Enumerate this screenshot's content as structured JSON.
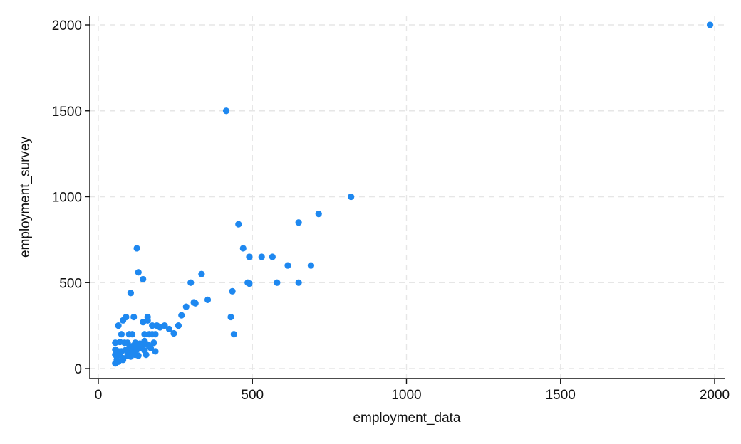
{
  "chart_data": {
    "type": "scatter",
    "xlabel": "employment_data",
    "ylabel": "employment_survey",
    "xlim": [
      0,
      2000
    ],
    "ylim": [
      0,
      2000
    ],
    "x_ticks": [
      0,
      500,
      1000,
      1500,
      2000
    ],
    "y_ticks": [
      0,
      500,
      1000,
      1500,
      2000
    ],
    "x_tick_labels": [
      "0",
      "500",
      "1000",
      "1500",
      "2000"
    ],
    "y_tick_labels": [
      "0",
      "500",
      "1000",
      "1500",
      "2000"
    ],
    "grid": true,
    "marker_color": "#1e88f0",
    "points": [
      [
        1985,
        2000
      ],
      [
        415,
        1500
      ],
      [
        820,
        1000
      ],
      [
        715,
        900
      ],
      [
        455,
        840
      ],
      [
        650,
        850
      ],
      [
        470,
        700
      ],
      [
        490,
        650
      ],
      [
        530,
        650
      ],
      [
        565,
        650
      ],
      [
        615,
        600
      ],
      [
        690,
        600
      ],
      [
        125,
        700
      ],
      [
        130,
        560
      ],
      [
        145,
        520
      ],
      [
        105,
        440
      ],
      [
        335,
        550
      ],
      [
        300,
        500
      ],
      [
        485,
        500
      ],
      [
        490,
        495
      ],
      [
        580,
        500
      ],
      [
        650,
        500
      ],
      [
        435,
        450
      ],
      [
        355,
        400
      ],
      [
        310,
        385
      ],
      [
        315,
        380
      ],
      [
        285,
        360
      ],
      [
        430,
        300
      ],
      [
        440,
        200
      ],
      [
        270,
        310
      ],
      [
        90,
        300
      ],
      [
        115,
        300
      ],
      [
        160,
        300
      ],
      [
        80,
        280
      ],
      [
        145,
        270
      ],
      [
        160,
        280
      ],
      [
        65,
        250
      ],
      [
        175,
        250
      ],
      [
        190,
        250
      ],
      [
        200,
        240
      ],
      [
        215,
        250
      ],
      [
        230,
        230
      ],
      [
        245,
        205
      ],
      [
        260,
        250
      ],
      [
        75,
        200
      ],
      [
        100,
        200
      ],
      [
        110,
        200
      ],
      [
        150,
        200
      ],
      [
        165,
        200
      ],
      [
        175,
        200
      ],
      [
        185,
        200
      ],
      [
        55,
        150
      ],
      [
        70,
        155
      ],
      [
        85,
        150
      ],
      [
        95,
        150
      ],
      [
        120,
        150
      ],
      [
        135,
        145
      ],
      [
        150,
        160
      ],
      [
        160,
        140
      ],
      [
        180,
        150
      ],
      [
        55,
        110
      ],
      [
        65,
        100
      ],
      [
        75,
        100
      ],
      [
        90,
        110
      ],
      [
        100,
        120
      ],
      [
        110,
        95
      ],
      [
        125,
        110
      ],
      [
        140,
        120
      ],
      [
        150,
        105
      ],
      [
        170,
        120
      ],
      [
        185,
        100
      ],
      [
        55,
        80
      ],
      [
        60,
        70
      ],
      [
        70,
        85
      ],
      [
        80,
        60
      ],
      [
        95,
        75
      ],
      [
        105,
        70
      ],
      [
        120,
        80
      ],
      [
        130,
        75
      ],
      [
        155,
        80
      ],
      [
        60,
        50
      ],
      [
        65,
        40
      ],
      [
        55,
        30
      ],
      [
        80,
        50
      ],
      [
        110,
        130
      ],
      [
        130,
        125
      ],
      [
        145,
        135
      ],
      [
        95,
        90
      ],
      [
        115,
        85
      ],
      [
        165,
        130
      ]
    ]
  }
}
